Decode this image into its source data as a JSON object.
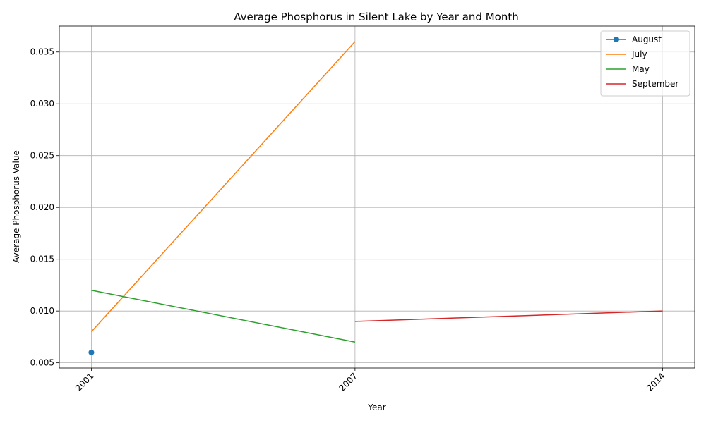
{
  "chart_data": {
    "type": "line",
    "title": "Average Phosphorus in Silent Lake by Year and Month",
    "xlabel": "Year",
    "ylabel": "Average Phosphorus Value",
    "x_ticks": [
      2001,
      2007,
      2014
    ],
    "y_ticks": [
      "0.005",
      "0.010",
      "0.015",
      "0.020",
      "0.025",
      "0.030",
      "0.035"
    ],
    "xlim": [
      2000.27,
      2014.73
    ],
    "ylim": [
      0.0045,
      0.0375
    ],
    "grid": true,
    "legend_position": "top-right",
    "series": [
      {
        "name": "August",
        "color": "#1f77b4",
        "marker": true,
        "points": [
          {
            "x": 2001,
            "y": 0.006
          }
        ]
      },
      {
        "name": "July",
        "color": "#ff7f0e",
        "marker": false,
        "points": [
          {
            "x": 2001,
            "y": 0.008
          },
          {
            "x": 2007,
            "y": 0.036
          }
        ]
      },
      {
        "name": "May",
        "color": "#2ca02c",
        "marker": false,
        "points": [
          {
            "x": 2001,
            "y": 0.012
          },
          {
            "x": 2007,
            "y": 0.007
          }
        ]
      },
      {
        "name": "September",
        "color": "#d62728",
        "marker": false,
        "points": [
          {
            "x": 2007,
            "y": 0.009
          },
          {
            "x": 2014,
            "y": 0.01
          }
        ]
      }
    ]
  }
}
